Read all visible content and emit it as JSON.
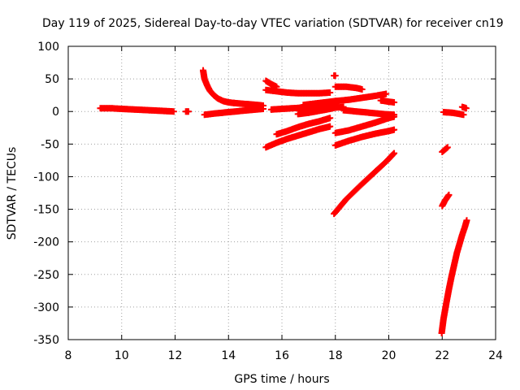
{
  "chart_data": {
    "type": "scatter",
    "title": "Day 119 of 2025, Sidereal Day-to-day VTEC variation (SDTVAR) for receiver cn19",
    "xlabel": "GPS time / hours",
    "ylabel": "SDTVAR / TECUs",
    "xlim": [
      8,
      24
    ],
    "ylim": [
      -350,
      100
    ],
    "xticks": [
      "8",
      "10",
      "12",
      "14",
      "16",
      "18",
      "20",
      "22",
      "24"
    ],
    "yticks": [
      "-350",
      "-300",
      "-250",
      "-200",
      "-150",
      "-100",
      "-50",
      "0",
      "50",
      "100"
    ],
    "grid": true,
    "marker": "+",
    "color": "#ff0000",
    "series": [
      {
        "x": [
          9.2,
          9.6,
          10.0,
          10.5,
          11.0,
          11.5,
          11.95
        ],
        "y": [
          5,
          5,
          4,
          3,
          2,
          1,
          0
        ]
      },
      {
        "x": [
          12.4,
          12.5
        ],
        "y": [
          0,
          0
        ]
      },
      {
        "x": [
          13.05,
          13.1,
          13.2,
          13.3,
          13.45,
          13.6,
          13.8,
          14.0,
          14.2
        ],
        "y": [
          63,
          50,
          40,
          32,
          25,
          20,
          16,
          14,
          13
        ]
      },
      {
        "x": [
          14.2,
          14.5,
          14.8,
          15.1,
          15.3
        ],
        "y": [
          13,
          12,
          11,
          10,
          9
        ]
      },
      {
        "x": [
          13.1,
          13.5,
          14.0,
          14.5,
          15.0,
          15.3
        ],
        "y": [
          -5,
          -3,
          -1,
          1,
          3,
          4
        ]
      },
      {
        "x": [
          15.4,
          15.6,
          15.8
        ],
        "y": [
          47,
          42,
          38
        ]
      },
      {
        "x": [
          15.4,
          15.8,
          16.2,
          16.6,
          17.0,
          17.4,
          17.8
        ],
        "y": [
          33,
          31,
          29,
          28,
          28,
          28,
          29
        ]
      },
      {
        "x": [
          15.4,
          15.8,
          16.2,
          16.6,
          17.0,
          17.4,
          17.8
        ],
        "y": [
          -55,
          -48,
          -42,
          -37,
          -32,
          -27,
          -23
        ]
      },
      {
        "x": [
          15.8,
          16.2,
          16.6,
          17.0,
          17.4,
          17.8
        ],
        "y": [
          -35,
          -30,
          -24,
          -19,
          -15,
          -10
        ]
      },
      {
        "x": [
          15.6,
          16.0,
          16.4,
          16.8,
          17.2,
          17.6,
          18.0
        ],
        "y": [
          3,
          4,
          5,
          6,
          7,
          8,
          9
        ]
      },
      {
        "x": [
          16.6,
          17.0,
          17.4,
          17.8,
          18.1
        ],
        "y": [
          -4,
          -2,
          1,
          4,
          7
        ]
      },
      {
        "x": [
          16.8,
          17.2,
          17.6,
          18.0
        ],
        "y": [
          10,
          12,
          14,
          16
        ]
      },
      {
        "x": [
          17.6,
          17.8,
          18.0
        ],
        "y": [
          12,
          14,
          16
        ]
      },
      {
        "x": [
          17.95,
          18.0
        ],
        "y": [
          55,
          55
        ]
      },
      {
        "x": [
          18.0,
          18.4,
          18.8,
          19.0
        ],
        "y": [
          38,
          38,
          36,
          34
        ]
      },
      {
        "x": [
          18.0,
          18.5,
          19.0,
          19.5,
          19.9
        ],
        "y": [
          16,
          18,
          21,
          24,
          27
        ]
      },
      {
        "x": [
          18.0,
          18.3
        ],
        "y": [
          6,
          7
        ]
      },
      {
        "x": [
          18.3,
          18.8,
          19.3,
          19.8,
          20.2
        ],
        "y": [
          2,
          0,
          -2,
          -4,
          -5
        ]
      },
      {
        "x": [
          19.7,
          20.0,
          20.2
        ],
        "y": [
          17,
          15,
          14
        ]
      },
      {
        "x": [
          18.0,
          18.5,
          19.0,
          19.5,
          20.0,
          20.2
        ],
        "y": [
          -33,
          -29,
          -23,
          -17,
          -10,
          -8
        ]
      },
      {
        "x": [
          18.0,
          18.5,
          19.0,
          19.5,
          20.0,
          20.2
        ],
        "y": [
          -52,
          -45,
          -39,
          -34,
          -30,
          -28
        ]
      },
      {
        "x": [
          17.95,
          18.4,
          18.9,
          19.4,
          19.9,
          20.2
        ],
        "y": [
          -157,
          -135,
          -115,
          -96,
          -77,
          -64
        ]
      },
      {
        "x": [
          22.05,
          22.4,
          22.8
        ],
        "y": [
          -1,
          -2,
          -5
        ]
      },
      {
        "x": [
          22.75,
          22.9
        ],
        "y": [
          7,
          5
        ]
      },
      {
        "x": [
          22.0,
          22.2
        ],
        "y": [
          -62,
          -55
        ]
      },
      {
        "x": [
          22.0,
          22.1,
          22.25
        ],
        "y": [
          -145,
          -137,
          -128
        ]
      },
      {
        "x": [
          21.98,
          22.05,
          22.15,
          22.25,
          22.35,
          22.45,
          22.55,
          22.65,
          22.75,
          22.85,
          22.92
        ],
        "y": [
          -340,
          -318,
          -295,
          -273,
          -253,
          -235,
          -217,
          -203,
          -189,
          -177,
          -167
        ]
      }
    ]
  }
}
